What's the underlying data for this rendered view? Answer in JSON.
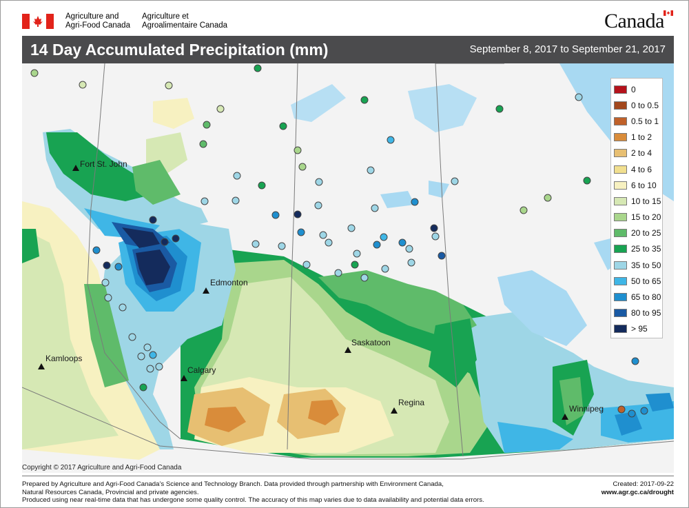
{
  "header": {
    "dept_en_line1": "Agriculture and",
    "dept_en_line2": "Agri-Food Canada",
    "dept_fr_line1": "Agriculture et",
    "dept_fr_line2": "Agroalimentaire Canada",
    "wordmark": "Canada"
  },
  "title": {
    "text": "14 Day Accumulated Precipitation (mm)",
    "date_range": "September 8, 2017 to September 21, 2017"
  },
  "map": {
    "cities": [
      {
        "id": "fort-st-john",
        "name": "Fort St. John"
      },
      {
        "id": "edmonton",
        "name": "Edmonton"
      },
      {
        "id": "kamloops",
        "name": "Kamloops"
      },
      {
        "id": "calgary",
        "name": "Calgary"
      },
      {
        "id": "saskatoon",
        "name": "Saskatoon"
      },
      {
        "id": "regina",
        "name": "Regina"
      },
      {
        "id": "winnipeg",
        "name": "Winnipeg"
      }
    ],
    "copyright": "Copyright © 2017 Agriculture and Agri-Food Canada"
  },
  "legend": {
    "items": [
      {
        "label": "0",
        "color": "#b5121b"
      },
      {
        "label": "0 to 0.5",
        "color": "#a3481d"
      },
      {
        "label": "0.5 to 1",
        "color": "#c0612a"
      },
      {
        "label": "1 to 2",
        "color": "#d98c3a"
      },
      {
        "label": "2 to 4",
        "color": "#e7bf72"
      },
      {
        "label": "4 to 6",
        "color": "#f1df8f"
      },
      {
        "label": "6 to 10",
        "color": "#f7f1c1"
      },
      {
        "label": "10 to 15",
        "color": "#d6e8b4"
      },
      {
        "label": "15 to 20",
        "color": "#a9d68c"
      },
      {
        "label": "20 to 25",
        "color": "#5fbb6a"
      },
      {
        "label": "25 to 35",
        "color": "#18a352"
      },
      {
        "label": "35 to 50",
        "color": "#9ed6e6"
      },
      {
        "label": "50 to 65",
        "color": "#3fb6e6"
      },
      {
        "label": "65 to 80",
        "color": "#1f8fcf"
      },
      {
        "label": "80 to 95",
        "color": "#1a5aa3"
      },
      {
        "label": "> 95",
        "color": "#142b5c"
      }
    ]
  },
  "footer": {
    "line1": "Prepared by Agriculture and Agri-Food Canada’s Science and Technology Branch. Data provided through partnership with Environment Canada,",
    "line2": "Natural Resources Canada, Provincial and private agencies.",
    "line3": "Produced using near real-time data that has undergone some quality control. The accuracy of this map varies due to data availability and potential data errors.",
    "created": "Created: 2017-09-22",
    "url": "www.agr.gc.ca/drought"
  }
}
